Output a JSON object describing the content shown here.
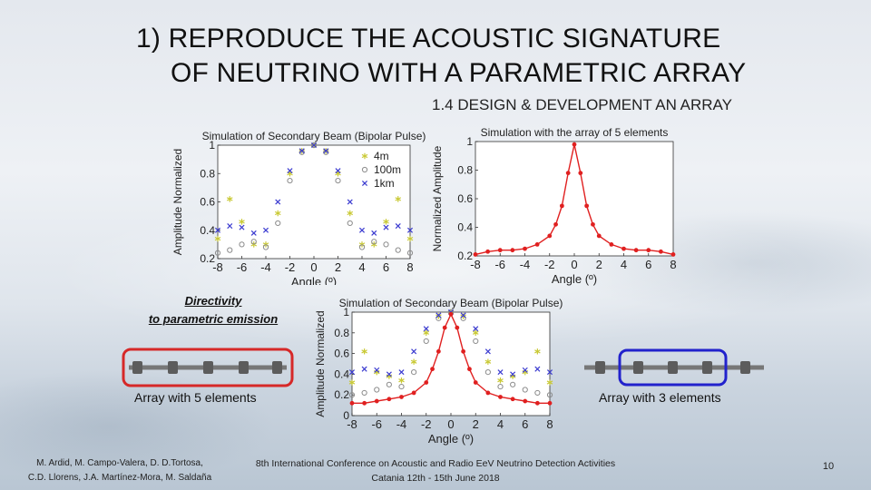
{
  "slide": {
    "title_line1": "1)   REPRODUCE  THE ACOUSTIC SIGNATURE",
    "title_line2": "OF NEUTRINO WITH A PARAMETRIC ARRAY",
    "subtitle": "1.4 DESIGN & DEVELOPMENT AN ARRAY",
    "directivity_line1": "Directivity",
    "directivity_line2": "to parametric emission",
    "array5_label": "Array with 5 elements",
    "array3_label": "Array with 3 elements",
    "authors_line1": "M. Ardid, M. Campo-Valera, D. D.Tortosa,",
    "authors_line2": "C.D. Llorens, J.A. Martínez-Mora, M. Saldaña",
    "conference_line1": "8th International Conference on Acoustic and Radio EeV Neutrino Detection Activities",
    "conference_line2": "Catania 12th - 15th June 2018",
    "page_number": "10",
    "colors": {
      "series_4m": "#c9c934",
      "series_100m": "#8c8c8c",
      "series_1km": "#3b3bd0",
      "series_array": "#e02020",
      "box_red": "#d62828",
      "box_blue": "#2222cc"
    }
  },
  "chart_data": [
    {
      "type": "scatter",
      "title": "Simulation of Secondary Beam (Bipolar Pulse)",
      "xlabel": "Angle (º)",
      "ylabel": "Amplitude Normalized",
      "xlim": [
        -8,
        8
      ],
      "ylim": [
        0.2,
        1.0
      ],
      "xticks": [
        "-8",
        "-6",
        "-4",
        "-2",
        "0",
        "2",
        "4",
        "6",
        "8"
      ],
      "yticks": [
        "0.2",
        "0.4",
        "0.6",
        "0.8",
        "1"
      ],
      "legend": {
        "placement": "top-right",
        "entries": [
          "4m",
          "100m",
          "1km"
        ]
      },
      "series": [
        {
          "name": "4m",
          "marker": "star",
          "x": [
            -8,
            -7,
            -6,
            -5,
            -4,
            -3,
            -2,
            -1,
            0,
            1,
            2,
            3,
            4,
            5,
            6,
            7,
            8
          ],
          "values": [
            0.34,
            0.62,
            0.46,
            0.3,
            0.3,
            0.52,
            0.8,
            0.96,
            1.0,
            0.96,
            0.8,
            0.52,
            0.3,
            0.3,
            0.46,
            0.62,
            0.34
          ]
        },
        {
          "name": "100m",
          "marker": "circle",
          "x": [
            -8,
            -7,
            -6,
            -5,
            -4,
            -3,
            -2,
            -1,
            0,
            1,
            2,
            3,
            4,
            5,
            6,
            7,
            8
          ],
          "values": [
            0.24,
            0.26,
            0.3,
            0.32,
            0.28,
            0.45,
            0.75,
            0.95,
            1.0,
            0.95,
            0.75,
            0.45,
            0.28,
            0.32,
            0.3,
            0.26,
            0.24
          ]
        },
        {
          "name": "1km",
          "marker": "cross",
          "x": [
            -8,
            -7,
            -6,
            -5,
            -4,
            -3,
            -2,
            -1,
            0,
            1,
            2,
            3,
            4,
            5,
            6,
            7,
            8
          ],
          "values": [
            0.4,
            0.43,
            0.42,
            0.38,
            0.4,
            0.6,
            0.82,
            0.96,
            1.0,
            0.96,
            0.82,
            0.6,
            0.4,
            0.38,
            0.42,
            0.43,
            0.4
          ]
        }
      ]
    },
    {
      "type": "line",
      "title": "Simulation with the array of 5 elements",
      "xlabel": "Angle (º)",
      "ylabel": "Normalized Amplitude",
      "xlim": [
        -8,
        8
      ],
      "ylim": [
        0.2,
        1.0
      ],
      "xticks": [
        "-8",
        "-6",
        "-4",
        "-2",
        "0",
        "2",
        "4",
        "6",
        "8"
      ],
      "yticks": [
        "0.2",
        "0.4",
        "0.6",
        "0.8",
        "1"
      ],
      "series": [
        {
          "marker": "dot",
          "x": [
            -8,
            -7,
            -6,
            -5,
            -4,
            -3,
            -2,
            -1.5,
            -1,
            -0.5,
            0,
            0.5,
            1,
            1.5,
            2,
            3,
            4,
            5,
            6,
            7,
            8
          ],
          "values": [
            0.21,
            0.23,
            0.24,
            0.24,
            0.25,
            0.28,
            0.34,
            0.42,
            0.55,
            0.78,
            0.98,
            0.78,
            0.55,
            0.42,
            0.34,
            0.28,
            0.25,
            0.24,
            0.24,
            0.23,
            0.21
          ]
        }
      ]
    },
    {
      "type": "scatter",
      "title": "Simulation of Secondary Beam (Bipolar Pulse)",
      "xlabel": "Angle (º)",
      "ylabel": "Amplitude Normalized",
      "xlim": [
        -8,
        8
      ],
      "ylim": [
        0,
        1.0
      ],
      "xticks": [
        "-8",
        "-6",
        "-4",
        "-2",
        "0",
        "2",
        "4",
        "6",
        "8"
      ],
      "yticks": [
        "0",
        "0.2",
        "0.4",
        "0.6",
        "0.8",
        "1"
      ],
      "series": [
        {
          "name": "4m",
          "marker": "star",
          "x": [
            -8,
            -7,
            -6,
            -5,
            -4,
            -3,
            -2,
            -1,
            0,
            1,
            2,
            3,
            4,
            5,
            6,
            7,
            8
          ],
          "values": [
            0.32,
            0.62,
            0.42,
            0.38,
            0.34,
            0.52,
            0.8,
            0.96,
            1.0,
            0.96,
            0.8,
            0.52,
            0.34,
            0.38,
            0.42,
            0.62,
            0.32
          ]
        },
        {
          "name": "100m",
          "marker": "circle",
          "x": [
            -8,
            -7,
            -6,
            -5,
            -4,
            -3,
            -2,
            -1,
            0,
            1,
            2,
            3,
            4,
            5,
            6,
            7,
            8
          ],
          "values": [
            0.2,
            0.22,
            0.25,
            0.3,
            0.28,
            0.42,
            0.72,
            0.94,
            1.0,
            0.94,
            0.72,
            0.42,
            0.28,
            0.3,
            0.25,
            0.22,
            0.2
          ]
        },
        {
          "name": "1km",
          "marker": "cross",
          "x": [
            -8,
            -7,
            -6,
            -5,
            -4,
            -3,
            -2,
            -1,
            0,
            1,
            2,
            3,
            4,
            5,
            6,
            7,
            8
          ],
          "values": [
            0.42,
            0.45,
            0.44,
            0.4,
            0.42,
            0.62,
            0.84,
            0.97,
            1.0,
            0.97,
            0.84,
            0.62,
            0.42,
            0.4,
            0.44,
            0.45,
            0.42
          ]
        },
        {
          "name": "array",
          "marker": "dot",
          "x": [
            -8,
            -7,
            -6,
            -5,
            -4,
            -3,
            -2,
            -1.5,
            -1,
            -0.5,
            0,
            0.5,
            1,
            1.5,
            2,
            3,
            4,
            5,
            6,
            7,
            8
          ],
          "values": [
            0.12,
            0.12,
            0.14,
            0.16,
            0.18,
            0.22,
            0.32,
            0.45,
            0.62,
            0.85,
            0.98,
            0.85,
            0.62,
            0.45,
            0.32,
            0.22,
            0.18,
            0.16,
            0.14,
            0.12,
            0.12
          ]
        }
      ]
    }
  ]
}
